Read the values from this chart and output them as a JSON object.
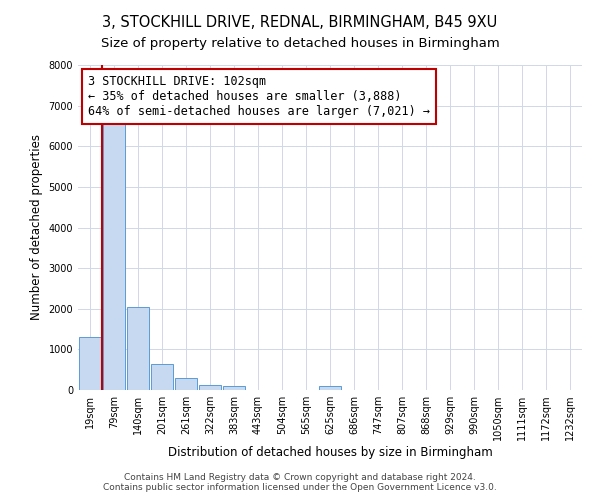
{
  "title1": "3, STOCKHILL DRIVE, REDNAL, BIRMINGHAM, B45 9XU",
  "title2": "Size of property relative to detached houses in Birmingham",
  "xlabel": "Distribution of detached houses by size in Birmingham",
  "ylabel": "Number of detached properties",
  "bar_labels": [
    "19sqm",
    "79sqm",
    "140sqm",
    "201sqm",
    "261sqm",
    "322sqm",
    "383sqm",
    "443sqm",
    "504sqm",
    "565sqm",
    "625sqm",
    "686sqm",
    "747sqm",
    "807sqm",
    "868sqm",
    "929sqm",
    "990sqm",
    "1050sqm",
    "1111sqm",
    "1172sqm",
    "1232sqm"
  ],
  "bar_values": [
    1300,
    6600,
    2050,
    650,
    300,
    130,
    100,
    0,
    0,
    0,
    100,
    0,
    0,
    0,
    0,
    0,
    0,
    0,
    0,
    0,
    0
  ],
  "bar_color": "#c6d9f0",
  "bar_edge_color": "#5b9bd5",
  "vline_color": "#c00000",
  "annotation_line1": "3 STOCKHILL DRIVE: 102sqm",
  "annotation_line2": "← 35% of detached houses are smaller (3,888)",
  "annotation_line3": "64% of semi-detached houses are larger (7,021) →",
  "annotation_box_edgecolor": "#c00000",
  "ylim": [
    0,
    8000
  ],
  "yticks": [
    0,
    1000,
    2000,
    3000,
    4000,
    5000,
    6000,
    7000,
    8000
  ],
  "footer1": "Contains HM Land Registry data © Crown copyright and database right 2024.",
  "footer2": "Contains public sector information licensed under the Open Government Licence v3.0.",
  "bg_color": "#ffffff",
  "grid_color": "#d0d8e8",
  "title1_fontsize": 10.5,
  "title2_fontsize": 9.5,
  "xlabel_fontsize": 8.5,
  "ylabel_fontsize": 8.5,
  "tick_fontsize": 7,
  "annotation_fontsize": 8.5,
  "footer_fontsize": 6.5
}
